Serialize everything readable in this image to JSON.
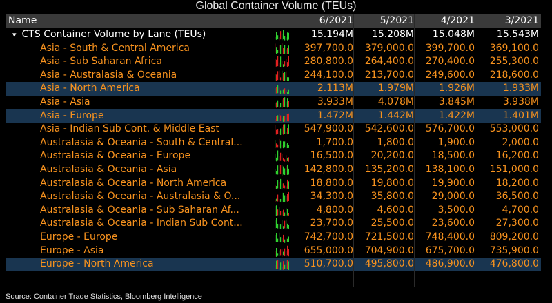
{
  "title": "Global Container Volume (TEUs)",
  "header": {
    "name": "Name",
    "columns": [
      "6/2021",
      "5/2021",
      "4/2021",
      "3/2021"
    ]
  },
  "rows": [
    {
      "label": "CTS Container Volume by Lane (TEUs)",
      "parent": true,
      "hl": false,
      "values": [
        "15.194M",
        "15.208M",
        "15.048M",
        "15.543M"
      ]
    },
    {
      "label": "Asia - South & Central America",
      "hl": false,
      "values": [
        "397,700.0",
        "379,000.0",
        "399,700.0",
        "369,100.0"
      ]
    },
    {
      "label": "Asia - Sub Saharan Africa",
      "hl": false,
      "values": [
        "280,800.0",
        "264,400.0",
        "270,400.0",
        "255,300.0"
      ]
    },
    {
      "label": "Asia - Australasia & Oceania",
      "hl": false,
      "values": [
        "244,100.0",
        "213,700.0",
        "249,600.0",
        "218,600.0"
      ]
    },
    {
      "label": "Asia - North America",
      "hl": true,
      "values": [
        "2.113M",
        "1.979M",
        "1.926M",
        "1.933M"
      ]
    },
    {
      "label": "Asia - Asia",
      "hl": false,
      "values": [
        "3.933M",
        "4.078M",
        "3.845M",
        "3.938M"
      ]
    },
    {
      "label": "Asia - Europe",
      "hl": true,
      "values": [
        "1.472M",
        "1.442M",
        "1.422M",
        "1.401M"
      ]
    },
    {
      "label": "Asia - Indian Sub Cont. & Middle East",
      "hl": false,
      "values": [
        "547,900.0",
        "542,600.0",
        "576,700.0",
        "553,000.0"
      ]
    },
    {
      "label": "Australasia & Oceania - South & Central...",
      "hl": false,
      "values": [
        "1,700.0",
        "1,800.0",
        "1,900.0",
        "2,000.0"
      ]
    },
    {
      "label": "Australasia & Oceania - Europe",
      "hl": false,
      "values": [
        "16,500.0",
        "20,200.0",
        "18,500.0",
        "16,200.0"
      ]
    },
    {
      "label": "Australasia & Oceania - Asia",
      "hl": false,
      "values": [
        "142,800.0",
        "135,200.0",
        "138,100.0",
        "151,000.0"
      ]
    },
    {
      "label": "Australasia & Oceania - North America",
      "hl": false,
      "values": [
        "18,800.0",
        "19,800.0",
        "19,900.0",
        "18,200.0"
      ]
    },
    {
      "label": "Australasia & Oceania - Australasia & O...",
      "hl": false,
      "values": [
        "34,300.0",
        "35,800.0",
        "29,000.0",
        "36,500.0"
      ]
    },
    {
      "label": "Australasia & Oceania - Sub Saharan Af...",
      "hl": false,
      "values": [
        "4,800.0",
        "4,600.0",
        "3,500.0",
        "4,700.0"
      ]
    },
    {
      "label": "Australasia & Oceania - Indian Sub Cont...",
      "hl": false,
      "values": [
        "23,700.0",
        "25,500.0",
        "23,600.0",
        "27,300.0"
      ]
    },
    {
      "label": "Europe - Europe",
      "hl": false,
      "values": [
        "742,700.0",
        "721,500.0",
        "748,400.0",
        "809,200.0"
      ]
    },
    {
      "label": "Europe - Asia",
      "hl": false,
      "values": [
        "655,000.0",
        "704,900.0",
        "675,700.0",
        "735,900.0"
      ]
    },
    {
      "label": "Europe - North America",
      "hl": true,
      "values": [
        "510,700.0",
        "495,800.0",
        "486,900.0",
        "476,800.0"
      ]
    }
  ],
  "source": "Source: Container Trade Statistics, Bloomberg Intelligence",
  "colors": {
    "accent": "#f7921e",
    "highlight": "#193550",
    "spark_up": "#2fd12f",
    "spark_down": "#e02020"
  },
  "icons": {
    "expand": "triangle-down-icon",
    "sparkline": "sparkline-icon"
  }
}
